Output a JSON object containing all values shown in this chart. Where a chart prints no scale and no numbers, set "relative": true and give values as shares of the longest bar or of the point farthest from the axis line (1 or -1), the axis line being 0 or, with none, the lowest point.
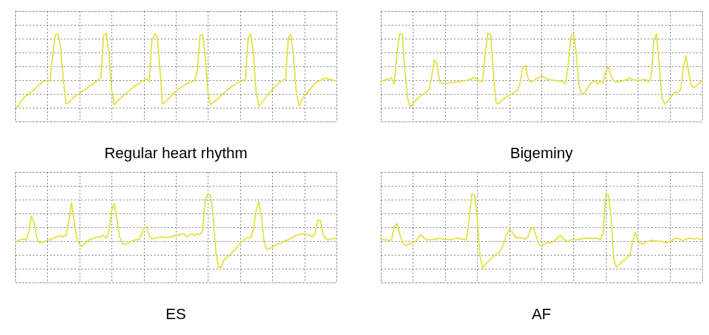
{
  "chart_data": [
    {
      "type": "line",
      "title": "Regular heart rhythm",
      "relative": true,
      "grid": true,
      "categories": [
        null,
        null,
        null,
        null,
        null,
        null,
        null,
        null,
        null,
        null,
        null,
        null,
        null,
        null,
        null,
        null,
        null,
        null,
        null,
        null,
        null,
        null,
        null,
        null,
        null,
        null,
        null,
        null,
        null,
        null,
        null,
        null,
        null,
        null,
        null,
        null,
        null,
        null,
        null,
        null,
        null,
        null,
        null,
        null,
        null,
        null,
        null,
        null,
        null,
        null,
        null,
        null,
        null,
        null,
        null,
        null,
        null,
        null,
        null,
        null,
        null,
        null,
        null,
        null,
        null,
        null,
        null,
        null,
        null,
        null,
        null,
        null,
        null,
        null,
        null,
        null,
        null,
        null,
        null,
        null,
        null,
        null,
        null,
        null,
        null,
        null,
        null,
        null,
        null,
        null,
        null,
        null,
        null,
        null,
        null,
        null,
        null,
        null,
        null,
        null,
        null,
        null,
        null,
        null,
        null,
        null,
        null,
        null,
        null,
        null,
        null,
        null,
        null,
        null,
        null,
        null,
        null,
        null,
        null,
        null,
        null
      ],
      "series": [
        {
          "color": "#e1e13a",
          "values": [
            0.02,
            0.0,
            0.07,
            0.11,
            0.15,
            0.17,
            0.2,
            0.23,
            0.27,
            0.3,
            0.33,
            0.35,
            0.36,
            0.35,
            0.7,
            0.98,
            0.99,
            0.79,
            0.36,
            0.04,
            0.06,
            0.1,
            0.13,
            0.16,
            0.18,
            0.21,
            0.23,
            0.26,
            0.29,
            0.31,
            0.34,
            0.36,
            0.4,
            0.97,
            1.0,
            0.72,
            0.23,
            0.03,
            0.07,
            0.11,
            0.14,
            0.17,
            0.2,
            0.23,
            0.26,
            0.29,
            0.31,
            0.34,
            0.36,
            0.38,
            0.34,
            0.89,
            0.99,
            0.96,
            0.53,
            0.04,
            0.06,
            0.1,
            0.14,
            0.18,
            0.21,
            0.24,
            0.27,
            0.29,
            0.31,
            0.33,
            0.34,
            0.36,
            0.49,
            0.97,
            0.98,
            0.66,
            0.19,
            0.03,
            0.06,
            0.09,
            0.12,
            0.16,
            0.19,
            0.22,
            0.25,
            0.28,
            0.3,
            0.32,
            0.34,
            0.36,
            0.37,
            0.94,
            0.99,
            0.7,
            0.19,
            0.01,
            0.06,
            0.1,
            0.15,
            0.19,
            0.23,
            0.28,
            0.31,
            0.34,
            0.36,
            0.38,
            0.94,
            0.98,
            0.66,
            0.19,
            0.01,
            0.09,
            0.15,
            0.19,
            0.23,
            0.28,
            0.32,
            0.34,
            0.36,
            0.38,
            0.39,
            0.37,
            0.37,
            0.36,
            0.35
          ]
        }
      ]
    },
    {
      "type": "line",
      "title": "Bigeminy",
      "relative": true,
      "grid": true,
      "categories": [
        null,
        null,
        null,
        null,
        null,
        null,
        null,
        null,
        null,
        null,
        null,
        null,
        null,
        null,
        null,
        null,
        null,
        null,
        null,
        null,
        null,
        null,
        null,
        null,
        null,
        null,
        null,
        null,
        null,
        null,
        null,
        null,
        null,
        null,
        null,
        null,
        null,
        null,
        null,
        null,
        null,
        null,
        null,
        null,
        null,
        null,
        null,
        null,
        null,
        null,
        null,
        null,
        null,
        null,
        null,
        null,
        null,
        null,
        null,
        null,
        null,
        null,
        null,
        null,
        null,
        null,
        null,
        null,
        null,
        null,
        null,
        null,
        null,
        null,
        null,
        null,
        null,
        null,
        null,
        null,
        null,
        null,
        null,
        null,
        null,
        null,
        null,
        null,
        null,
        null,
        null,
        null,
        null,
        null,
        null,
        null,
        null,
        null,
        null,
        null,
        null,
        null,
        null,
        null,
        null,
        null,
        null,
        null,
        null,
        null,
        null,
        null,
        null,
        null,
        null,
        null,
        null,
        null,
        null,
        null,
        null
      ],
      "series": [
        {
          "color": "#e1e13a",
          "values": [
            0.35,
            0.36,
            0.37,
            0.38,
            0.39,
            0.31,
            0.73,
            0.99,
            0.99,
            0.5,
            0.12,
            0.0,
            0.04,
            0.09,
            0.12,
            0.15,
            0.18,
            0.2,
            0.23,
            0.41,
            0.64,
            0.58,
            0.34,
            0.31,
            0.32,
            0.32,
            0.33,
            0.33,
            0.34,
            0.34,
            0.35,
            0.35,
            0.36,
            0.37,
            0.38,
            0.4,
            0.38,
            0.35,
            0.34,
            0.73,
            1.0,
            0.98,
            0.5,
            0.06,
            0.04,
            0.08,
            0.11,
            0.13,
            0.16,
            0.18,
            0.2,
            0.22,
            0.32,
            0.54,
            0.56,
            0.39,
            0.34,
            0.35,
            0.38,
            0.4,
            0.42,
            0.4,
            0.38,
            0.37,
            0.36,
            0.36,
            0.35,
            0.35,
            0.34,
            0.31,
            0.58,
            0.95,
            0.99,
            0.73,
            0.29,
            0.18,
            0.18,
            0.24,
            0.3,
            0.34,
            0.35,
            0.31,
            0.35,
            0.32,
            0.47,
            0.54,
            0.42,
            0.35,
            0.34,
            0.34,
            0.35,
            0.36,
            0.37,
            0.39,
            0.37,
            0.36,
            0.36,
            0.36,
            0.37,
            0.37,
            0.34,
            0.41,
            0.91,
            0.99,
            0.58,
            0.12,
            0.04,
            0.07,
            0.11,
            0.16,
            0.2,
            0.19,
            0.23,
            0.53,
            0.69,
            0.47,
            0.29,
            0.26,
            0.29,
            0.32,
            0.35
          ]
        }
      ]
    },
    {
      "type": "line",
      "title": "ES",
      "relative": true,
      "grid": true,
      "categories": [
        null,
        null,
        null,
        null,
        null,
        null,
        null,
        null,
        null,
        null,
        null,
        null,
        null,
        null,
        null,
        null,
        null,
        null,
        null,
        null,
        null,
        null,
        null,
        null,
        null,
        null,
        null,
        null,
        null,
        null,
        null,
        null,
        null,
        null,
        null,
        null,
        null,
        null,
        null,
        null,
        null,
        null,
        null,
        null,
        null,
        null,
        null,
        null,
        null,
        null,
        null,
        null,
        null,
        null,
        null,
        null,
        null,
        null,
        null,
        null,
        null,
        null,
        null,
        null,
        null,
        null,
        null,
        null,
        null,
        null,
        null,
        null,
        null,
        null,
        null,
        null,
        null,
        null,
        null,
        null,
        null,
        null,
        null,
        null,
        null,
        null,
        null,
        null,
        null,
        null,
        null,
        null,
        null,
        null,
        null,
        null,
        null,
        null,
        null,
        null,
        null,
        null,
        null,
        null,
        null,
        null,
        null,
        null,
        null,
        null,
        null,
        null,
        null,
        null,
        null,
        null,
        null,
        null,
        null,
        null,
        null
      ],
      "series": [
        {
          "color": "#e1e13a",
          "values": [
            0.34,
            0.37,
            0.38,
            0.39,
            0.38,
            0.48,
            0.7,
            0.62,
            0.42,
            0.34,
            0.34,
            0.36,
            0.37,
            0.38,
            0.4,
            0.41,
            0.42,
            0.44,
            0.42,
            0.44,
            0.63,
            0.88,
            0.63,
            0.4,
            0.32,
            0.29,
            0.33,
            0.37,
            0.38,
            0.4,
            0.41,
            0.42,
            0.42,
            0.44,
            0.4,
            0.5,
            0.77,
            0.87,
            0.65,
            0.42,
            0.33,
            0.32,
            0.33,
            0.35,
            0.37,
            0.38,
            0.38,
            0.44,
            0.54,
            0.56,
            0.44,
            0.39,
            0.4,
            0.41,
            0.42,
            0.42,
            0.41,
            0.41,
            0.42,
            0.43,
            0.44,
            0.44,
            0.46,
            0.46,
            0.42,
            0.44,
            0.46,
            0.44,
            0.46,
            0.45,
            0.5,
            0.94,
            1.0,
            0.98,
            0.66,
            0.19,
            0.0,
            0.01,
            0.11,
            0.14,
            0.17,
            0.21,
            0.24,
            0.29,
            0.33,
            0.37,
            0.4,
            0.41,
            0.41,
            0.53,
            0.78,
            0.9,
            0.69,
            0.34,
            0.25,
            0.26,
            0.28,
            0.3,
            0.32,
            0.33,
            0.35,
            0.37,
            0.38,
            0.4,
            0.42,
            0.44,
            0.45,
            0.46,
            0.46,
            0.45,
            0.44,
            0.42,
            0.46,
            0.65,
            0.64,
            0.45,
            0.39,
            0.38,
            0.39,
            0.4,
            0.39
          ]
        }
      ]
    },
    {
      "type": "line",
      "title": "AF",
      "relative": true,
      "grid": true,
      "categories": [
        null,
        null,
        null,
        null,
        null,
        null,
        null,
        null,
        null,
        null,
        null,
        null,
        null,
        null,
        null,
        null,
        null,
        null,
        null,
        null,
        null,
        null,
        null,
        null,
        null,
        null,
        null,
        null,
        null,
        null,
        null,
        null,
        null,
        null,
        null,
        null,
        null,
        null,
        null,
        null,
        null,
        null,
        null,
        null,
        null,
        null,
        null,
        null,
        null,
        null,
        null,
        null,
        null,
        null,
        null,
        null,
        null,
        null,
        null,
        null,
        null,
        null,
        null,
        null,
        null,
        null,
        null,
        null,
        null,
        null,
        null,
        null,
        null,
        null,
        null,
        null,
        null,
        null,
        null,
        null,
        null,
        null,
        null,
        null,
        null,
        null,
        null,
        null,
        null,
        null,
        null,
        null,
        null,
        null,
        null,
        null,
        null,
        null,
        null,
        null,
        null,
        null,
        null,
        null,
        null,
        null,
        null,
        null,
        null,
        null,
        null,
        null,
        null,
        null,
        null,
        null,
        null,
        null,
        null,
        null,
        null
      ],
      "series": [
        {
          "color": "#e1e13a",
          "values": [
            0.38,
            0.38,
            0.38,
            0.37,
            0.38,
            0.56,
            0.6,
            0.47,
            0.35,
            0.3,
            0.31,
            0.33,
            0.34,
            0.36,
            0.41,
            0.45,
            0.41,
            0.38,
            0.38,
            0.38,
            0.39,
            0.39,
            0.4,
            0.39,
            0.38,
            0.39,
            0.38,
            0.39,
            0.4,
            0.4,
            0.39,
            0.39,
            0.38,
            0.66,
            1.0,
            0.99,
            0.69,
            0.17,
            0.0,
            0.04,
            0.08,
            0.12,
            0.15,
            0.18,
            0.2,
            0.25,
            0.34,
            0.46,
            0.52,
            0.49,
            0.43,
            0.4,
            0.41,
            0.4,
            0.39,
            0.42,
            0.54,
            0.54,
            0.43,
            0.32,
            0.29,
            0.32,
            0.34,
            0.34,
            0.35,
            0.37,
            0.4,
            0.44,
            0.4,
            0.37,
            0.36,
            0.38,
            0.38,
            0.38,
            0.39,
            0.39,
            0.4,
            0.4,
            0.4,
            0.4,
            0.4,
            0.4,
            0.38,
            0.46,
            0.98,
            0.99,
            0.69,
            0.11,
            0.01,
            0.04,
            0.08,
            0.11,
            0.14,
            0.17,
            0.34,
            0.48,
            0.38,
            0.33,
            0.32,
            0.35,
            0.36,
            0.37,
            0.37,
            0.36,
            0.36,
            0.36,
            0.34,
            0.34,
            0.36,
            0.38,
            0.4,
            0.4,
            0.38,
            0.37,
            0.39,
            0.4,
            0.4,
            0.39,
            0.4,
            0.39,
            0.38
          ]
        }
      ]
    }
  ]
}
